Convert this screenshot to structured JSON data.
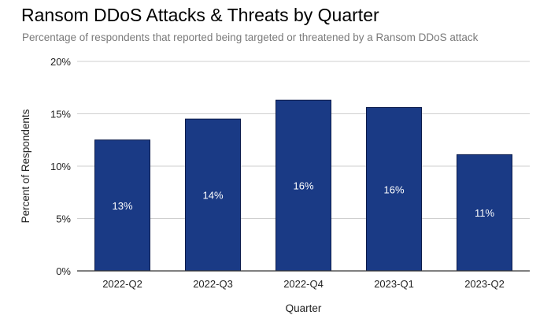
{
  "chart_data": {
    "type": "bar",
    "title": "Ransom DDoS Attacks & Threats by Quarter",
    "subtitle": "Percentage of respondents that reported being targeted or threatened by a Ransom DDoS attack",
    "xlabel": "Quarter",
    "ylabel": "Percent of Respondents",
    "categories": [
      "2022-Q2",
      "2022-Q3",
      "2022-Q4",
      "2023-Q1",
      "2023-Q2"
    ],
    "values": [
      12.5,
      14.5,
      16.3,
      15.6,
      11.1
    ],
    "data_labels": [
      "13%",
      "14%",
      "16%",
      "16%",
      "11%"
    ],
    "ylim": [
      0,
      20
    ],
    "y_ticks": [
      0,
      5,
      10,
      15,
      20
    ],
    "y_tick_labels": [
      "0%",
      "5%",
      "10%",
      "15%",
      "20%"
    ],
    "grid": true,
    "legend": "none",
    "bar_color": "#1a3a85",
    "bar_edge_color": "#0a1a4a",
    "label_color": "#ffffff"
  }
}
